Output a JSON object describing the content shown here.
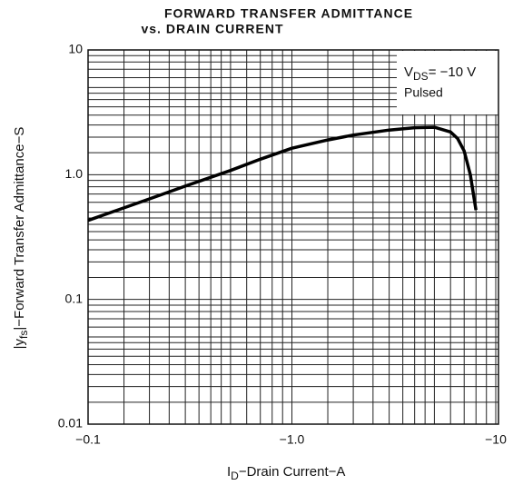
{
  "chart_data": {
    "type": "line",
    "title_lines": [
      "FORWARD TRANSFER ADMITTANCE",
      "vs. DRAIN CURRENT"
    ],
    "x_label": [
      "I",
      "D",
      "−Drain Current−A"
    ],
    "y_label": [
      "|y",
      "fs",
      "|−Forward Transfer Admittance−S"
    ],
    "annotation": [
      "V",
      "DS",
      "= −10 V",
      "Pulsed"
    ],
    "xscale": "log",
    "yscale": "log",
    "grid": true,
    "color": "#000000",
    "xlim": [
      -0.1,
      -10
    ],
    "xticks": [
      {
        "value": -0.1,
        "label": "−0.1"
      },
      {
        "value": -1,
        "label": "−1.0"
      },
      {
        "value": -10,
        "label": "−10"
      }
    ],
    "ylim": [
      0.01,
      10
    ],
    "yticks": [
      0.01,
      0.1,
      {
        "value": 1,
        "label": "1.0"
      },
      10
    ],
    "x": [
      -0.1,
      -0.2,
      -0.3,
      -0.5,
      -0.7,
      -1,
      -1.5,
      -2,
      -3,
      -4,
      -5,
      -6,
      -6.5,
      -7,
      -7.5,
      -8
    ],
    "series": [
      {
        "values": [
          0.43,
          0.64,
          0.81,
          1.08,
          1.33,
          1.63,
          1.9,
          2.08,
          2.28,
          2.38,
          2.4,
          2.2,
          1.95,
          1.55,
          1.0,
          0.52
        ]
      }
    ]
  }
}
